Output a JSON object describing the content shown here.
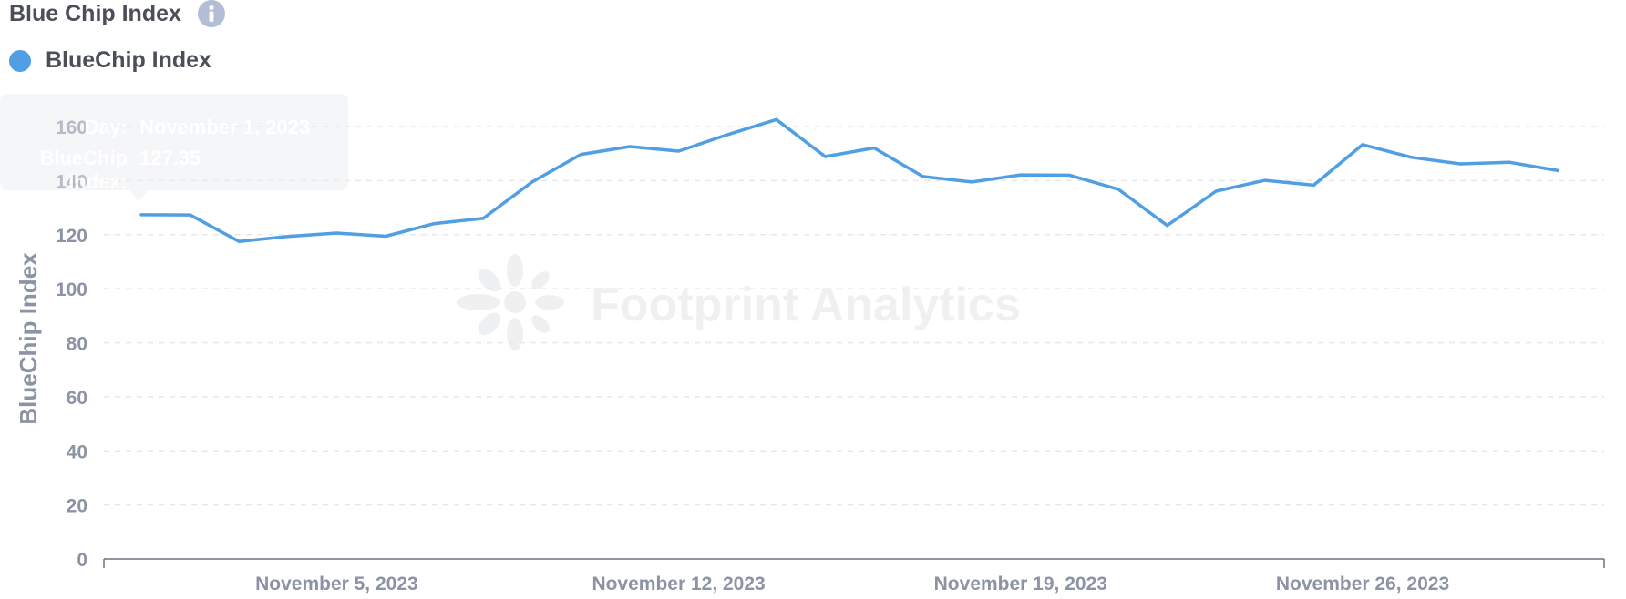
{
  "header": {
    "title": "Blue Chip Index",
    "info_icon": "info-icon"
  },
  "legend": {
    "label": "BlueChip Index",
    "color": "#509EE3"
  },
  "tooltip": {
    "date_key": "Day:",
    "date_value": "November 1, 2023",
    "index_key": "BlueChip Index:",
    "index_value": "127.35"
  },
  "watermark": {
    "text": "Footprint Analytics"
  },
  "chart_data": {
    "type": "line",
    "title": "Blue Chip Index",
    "ylabel": "BlueChip Index",
    "xlabel": "",
    "ylim": [
      0,
      160
    ],
    "yticks": [
      "0",
      "20",
      "40",
      "60",
      "80",
      "100",
      "120",
      "140",
      "160"
    ],
    "xtick_labels": [
      "November 5, 2023",
      "November 12, 2023",
      "November 19, 2023",
      "November 26, 2023"
    ],
    "xtick_dates": [
      "2023-11-05",
      "2023-11-12",
      "2023-11-19",
      "2023-11-26"
    ],
    "grid": true,
    "legend_position": "top-left",
    "series": [
      {
        "name": "BlueChip Index",
        "color": "#509EE3",
        "x": [
          "2023-11-01",
          "2023-11-02",
          "2023-11-03",
          "2023-11-04",
          "2023-11-05",
          "2023-11-06",
          "2023-11-07",
          "2023-11-08",
          "2023-11-09",
          "2023-11-10",
          "2023-11-11",
          "2023-11-12",
          "2023-11-13",
          "2023-11-14",
          "2023-11-15",
          "2023-11-16",
          "2023-11-17",
          "2023-11-18",
          "2023-11-19",
          "2023-11-20",
          "2023-11-21",
          "2023-11-22",
          "2023-11-23",
          "2023-11-24",
          "2023-11-25",
          "2023-11-26",
          "2023-11-27",
          "2023-11-28",
          "2023-11-29",
          "2023-11-30"
        ],
        "values": [
          127.35,
          127.3,
          117.5,
          119.3,
          120.6,
          119.4,
          124.1,
          126.0,
          139.5,
          149.7,
          152.6,
          150.9,
          157.0,
          162.6,
          148.9,
          152.1,
          141.5,
          139.5,
          142.1,
          142.0,
          136.8,
          123.4,
          136.1,
          140.1,
          138.3,
          153.3,
          148.6,
          146.2,
          146.8,
          143.7
        ]
      }
    ]
  }
}
